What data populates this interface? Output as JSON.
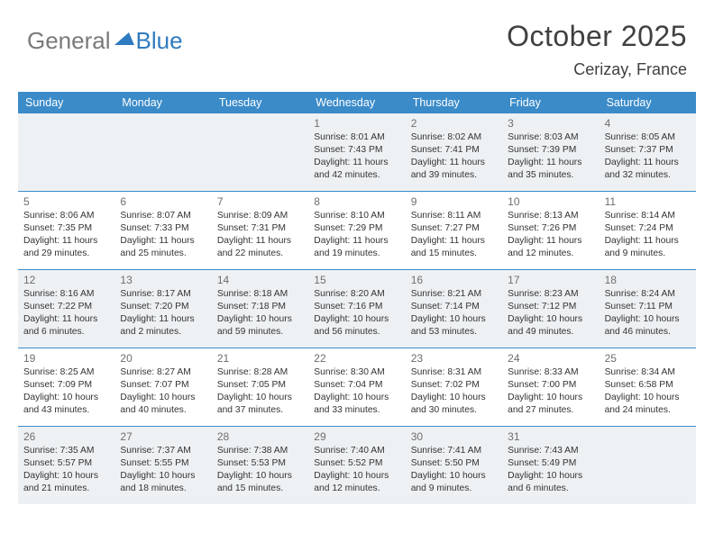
{
  "logo": {
    "text1": "General",
    "text2": "Blue"
  },
  "title": "October 2025",
  "location": "Cerizay, France",
  "day_names": [
    "Sunday",
    "Monday",
    "Tuesday",
    "Wednesday",
    "Thursday",
    "Friday",
    "Saturday"
  ],
  "header_bg": "#3b8bc9",
  "shade_bg": "#eef1f3",
  "weeks": [
    [
      {
        "n": "",
        "sr": "",
        "ss": "",
        "dl": ""
      },
      {
        "n": "",
        "sr": "",
        "ss": "",
        "dl": ""
      },
      {
        "n": "",
        "sr": "",
        "ss": "",
        "dl": ""
      },
      {
        "n": "1",
        "sr": "8:01 AM",
        "ss": "7:43 PM",
        "dl": "11 hours and 42 minutes."
      },
      {
        "n": "2",
        "sr": "8:02 AM",
        "ss": "7:41 PM",
        "dl": "11 hours and 39 minutes."
      },
      {
        "n": "3",
        "sr": "8:03 AM",
        "ss": "7:39 PM",
        "dl": "11 hours and 35 minutes."
      },
      {
        "n": "4",
        "sr": "8:05 AM",
        "ss": "7:37 PM",
        "dl": "11 hours and 32 minutes."
      }
    ],
    [
      {
        "n": "5",
        "sr": "8:06 AM",
        "ss": "7:35 PM",
        "dl": "11 hours and 29 minutes."
      },
      {
        "n": "6",
        "sr": "8:07 AM",
        "ss": "7:33 PM",
        "dl": "11 hours and 25 minutes."
      },
      {
        "n": "7",
        "sr": "8:09 AM",
        "ss": "7:31 PM",
        "dl": "11 hours and 22 minutes."
      },
      {
        "n": "8",
        "sr": "8:10 AM",
        "ss": "7:29 PM",
        "dl": "11 hours and 19 minutes."
      },
      {
        "n": "9",
        "sr": "8:11 AM",
        "ss": "7:27 PM",
        "dl": "11 hours and 15 minutes."
      },
      {
        "n": "10",
        "sr": "8:13 AM",
        "ss": "7:26 PM",
        "dl": "11 hours and 12 minutes."
      },
      {
        "n": "11",
        "sr": "8:14 AM",
        "ss": "7:24 PM",
        "dl": "11 hours and 9 minutes."
      }
    ],
    [
      {
        "n": "12",
        "sr": "8:16 AM",
        "ss": "7:22 PM",
        "dl": "11 hours and 6 minutes."
      },
      {
        "n": "13",
        "sr": "8:17 AM",
        "ss": "7:20 PM",
        "dl": "11 hours and 2 minutes."
      },
      {
        "n": "14",
        "sr": "8:18 AM",
        "ss": "7:18 PM",
        "dl": "10 hours and 59 minutes."
      },
      {
        "n": "15",
        "sr": "8:20 AM",
        "ss": "7:16 PM",
        "dl": "10 hours and 56 minutes."
      },
      {
        "n": "16",
        "sr": "8:21 AM",
        "ss": "7:14 PM",
        "dl": "10 hours and 53 minutes."
      },
      {
        "n": "17",
        "sr": "8:23 AM",
        "ss": "7:12 PM",
        "dl": "10 hours and 49 minutes."
      },
      {
        "n": "18",
        "sr": "8:24 AM",
        "ss": "7:11 PM",
        "dl": "10 hours and 46 minutes."
      }
    ],
    [
      {
        "n": "19",
        "sr": "8:25 AM",
        "ss": "7:09 PM",
        "dl": "10 hours and 43 minutes."
      },
      {
        "n": "20",
        "sr": "8:27 AM",
        "ss": "7:07 PM",
        "dl": "10 hours and 40 minutes."
      },
      {
        "n": "21",
        "sr": "8:28 AM",
        "ss": "7:05 PM",
        "dl": "10 hours and 37 minutes."
      },
      {
        "n": "22",
        "sr": "8:30 AM",
        "ss": "7:04 PM",
        "dl": "10 hours and 33 minutes."
      },
      {
        "n": "23",
        "sr": "8:31 AM",
        "ss": "7:02 PM",
        "dl": "10 hours and 30 minutes."
      },
      {
        "n": "24",
        "sr": "8:33 AM",
        "ss": "7:00 PM",
        "dl": "10 hours and 27 minutes."
      },
      {
        "n": "25",
        "sr": "8:34 AM",
        "ss": "6:58 PM",
        "dl": "10 hours and 24 minutes."
      }
    ],
    [
      {
        "n": "26",
        "sr": "7:35 AM",
        "ss": "5:57 PM",
        "dl": "10 hours and 21 minutes."
      },
      {
        "n": "27",
        "sr": "7:37 AM",
        "ss": "5:55 PM",
        "dl": "10 hours and 18 minutes."
      },
      {
        "n": "28",
        "sr": "7:38 AM",
        "ss": "5:53 PM",
        "dl": "10 hours and 15 minutes."
      },
      {
        "n": "29",
        "sr": "7:40 AM",
        "ss": "5:52 PM",
        "dl": "10 hours and 12 minutes."
      },
      {
        "n": "30",
        "sr": "7:41 AM",
        "ss": "5:50 PM",
        "dl": "10 hours and 9 minutes."
      },
      {
        "n": "31",
        "sr": "7:43 AM",
        "ss": "5:49 PM",
        "dl": "10 hours and 6 minutes."
      },
      {
        "n": "",
        "sr": "",
        "ss": "",
        "dl": ""
      }
    ]
  ]
}
